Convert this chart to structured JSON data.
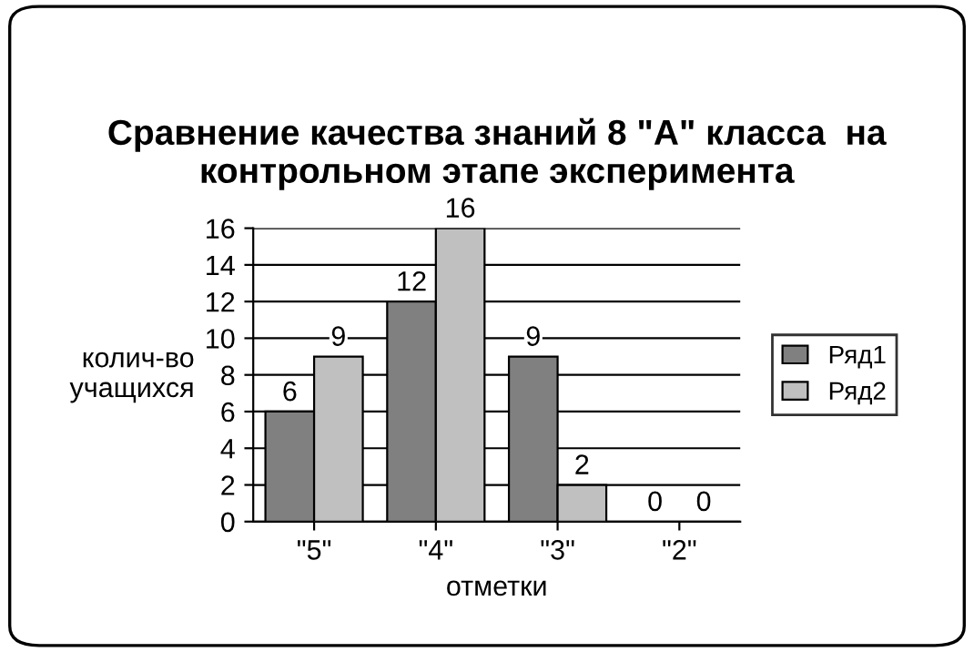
{
  "chart_data": {
    "type": "bar",
    "title": "Сравнение качества знаний 8 \"А\" класса  на контрольном этапе эксперимента",
    "xlabel": "отметки",
    "ylabel": "колич-во\nучащихся",
    "categories": [
      "\"5\"",
      "\"4\"",
      "\"3\"",
      "\"2\""
    ],
    "series": [
      {
        "name": "Ряд1",
        "color": "#808080",
        "values": [
          6,
          12,
          9,
          0
        ]
      },
      {
        "name": "Ряд2",
        "color": "#c0c0c0",
        "values": [
          9,
          16,
          2,
          0
        ]
      }
    ],
    "ylim": [
      0,
      16
    ],
    "yticks": [
      0,
      2,
      4,
      6,
      8,
      10,
      12,
      14,
      16
    ],
    "grid": "y",
    "legend": "right",
    "data_labels": true
  }
}
